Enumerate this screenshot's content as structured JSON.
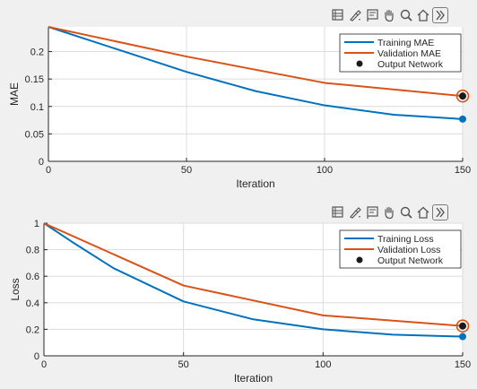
{
  "colors": {
    "training": "#0072bd",
    "validation": "#d95319",
    "marker": "#1a1a1a",
    "figure_bg": "#f0f0f0",
    "axes_bg": "#ffffff",
    "grid": "#dcdcdc"
  },
  "toolbar_icons": [
    "export-icon",
    "brush-icon",
    "datatip-icon",
    "pan-icon",
    "zoom-icon",
    "home-icon",
    "expand-icon"
  ],
  "chart_data": [
    {
      "type": "line",
      "xlabel": "Iteration",
      "ylabel": "MAE",
      "xlim": [
        0,
        150
      ],
      "ylim": [
        0,
        0.245
      ],
      "xticks": [
        "0",
        "50",
        "100",
        "150"
      ],
      "yticks": [
        "0",
        "0.05",
        "0.1",
        "0.15",
        "0.2"
      ],
      "grid": true,
      "legend_position": "top-right",
      "series": [
        {
          "name": "Training MAE",
          "x": [
            0,
            25,
            50,
            75,
            100,
            125,
            150
          ],
          "values": [
            0.245,
            0.204,
            0.163,
            0.128,
            0.102,
            0.085,
            0.077
          ]
        },
        {
          "name": "Validation MAE",
          "x": [
            0,
            50,
            100,
            150
          ],
          "values": [
            0.245,
            0.191,
            0.143,
            0.119
          ]
        }
      ],
      "output_network": {
        "name": "Output Network",
        "x": 150,
        "value": 0.119
      }
    },
    {
      "type": "line",
      "xlabel": "Iteration",
      "ylabel": "Loss",
      "xlim": [
        0,
        150
      ],
      "ylim": [
        0,
        1
      ],
      "xticks": [
        "0",
        "50",
        "100",
        "150"
      ],
      "yticks": [
        "0",
        "0.2",
        "0.4",
        "0.6",
        "0.8",
        "1"
      ],
      "grid": true,
      "legend_position": "top-right",
      "series": [
        {
          "name": "Training Loss",
          "x": [
            0,
            10,
            25,
            50,
            75,
            100,
            125,
            150
          ],
          "values": [
            1.0,
            0.86,
            0.66,
            0.41,
            0.275,
            0.2,
            0.16,
            0.145
          ]
        },
        {
          "name": "Validation Loss",
          "x": [
            0,
            50,
            100,
            150
          ],
          "values": [
            1.0,
            0.53,
            0.305,
            0.225
          ]
        }
      ],
      "output_network": {
        "name": "Output Network",
        "x": 150,
        "value": 0.225
      }
    }
  ]
}
